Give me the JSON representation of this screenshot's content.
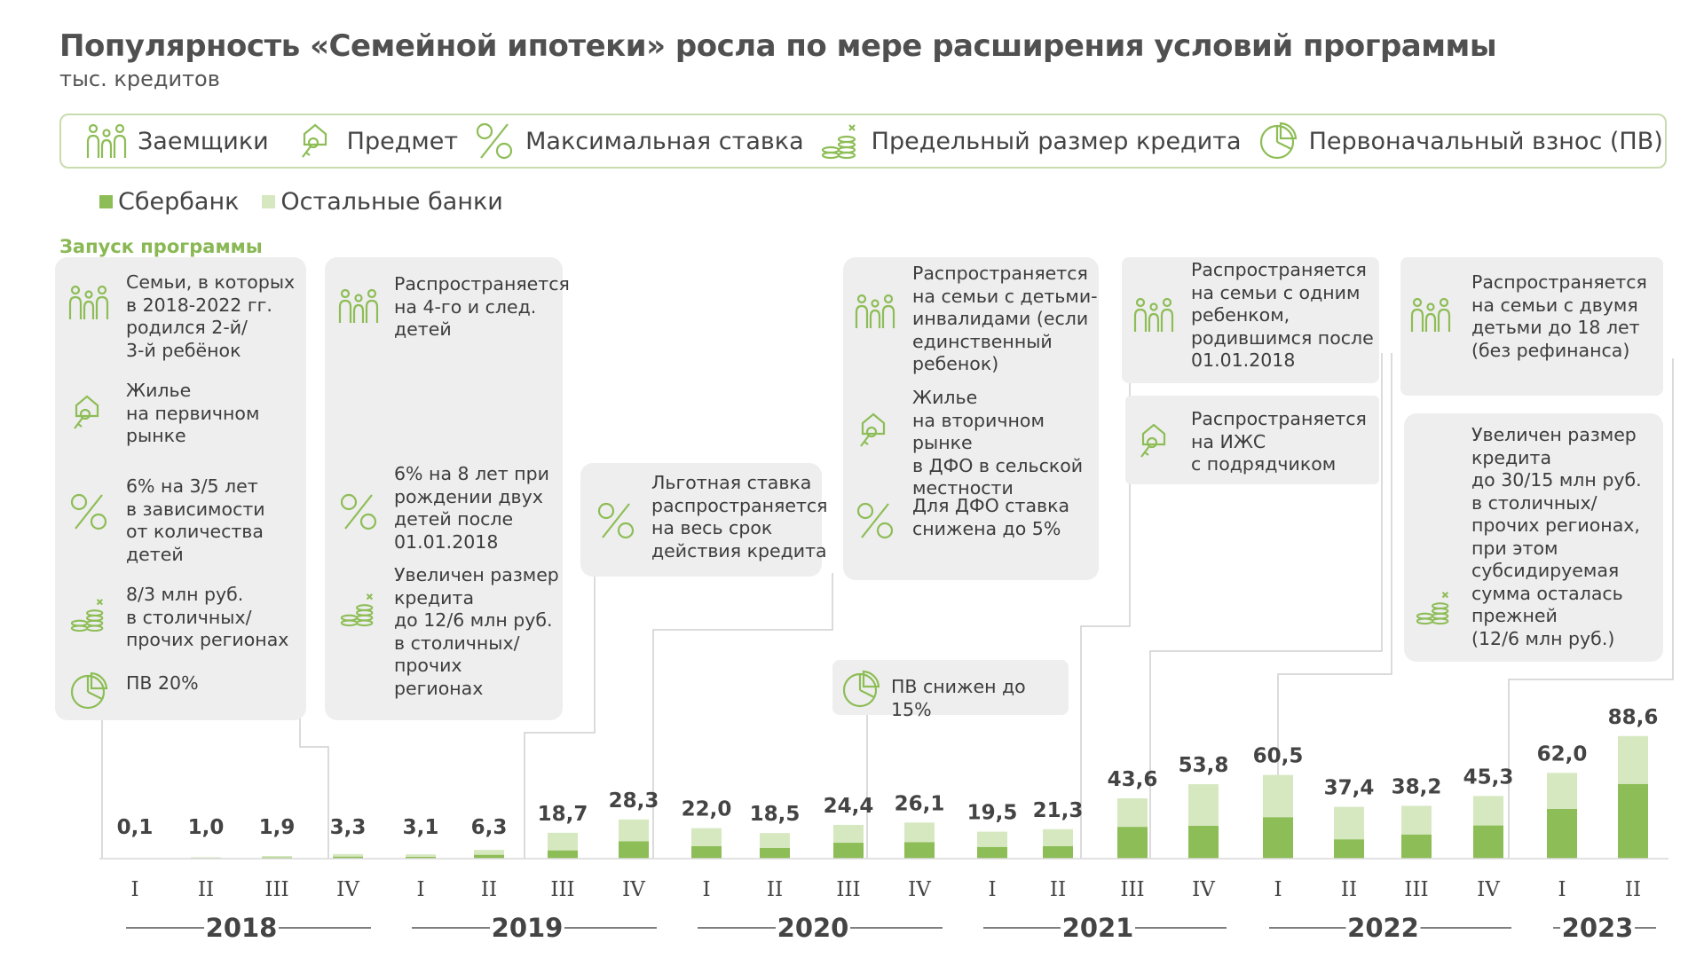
{
  "title": "Популярность «Семейной ипотеки» росла по мере расширения условий программы",
  "subtitle": "тыс. кредитов",
  "legend_icons": [
    {
      "icon": "family-icon",
      "label": "Заемщики"
    },
    {
      "icon": "house-key-icon",
      "label": "Предмет"
    },
    {
      "icon": "percent-icon",
      "label": "Максимальная ставка"
    },
    {
      "icon": "coins-icon",
      "label": "Предельный размер кредита"
    },
    {
      "icon": "pie-chart-icon",
      "label": "Первоначальный взнос (ПВ)"
    }
  ],
  "series_legend": [
    {
      "name": "Сбербанк",
      "color": "#8dbd56"
    },
    {
      "name": "Остальные банки",
      "color": "#d6e8c0"
    }
  ],
  "launch_label": "Запуск программы",
  "boxes": {
    "launch": {
      "borrowers": "Семьи, в которых\nв 2018-2022 гг.\nродился 2-й/\n3-й ребёнок",
      "subject": "Жилье\nна первичном\nрынке",
      "rate": "6% на 3/5 лет\nв зависимости\nот количества\nдетей",
      "limit": "8/3 млн руб.\nв столичных/\nпрочих регионах",
      "down": "ПВ 20%"
    },
    "y2019": {
      "borrowers": "Распространяется\nна 4-го и след.\nдетей",
      "rate": "6% на 8 лет при\nрождении двух\nдетей после\n01.01.2018",
      "limit": "Увеличен размер\nкредита\nдо 12/6 млн руб.\nв столичных/\nпрочих\nрегионах"
    },
    "y2019q4": {
      "rate": "Льготная ставка\nраспространяется\nна весь срок\nдействия кредита"
    },
    "y2020_down": {
      "down": "ПВ снижен до 15%"
    },
    "y2021q1": {
      "borrowers": "Распространяется\nна семьи с детьми-\nинвалидами (если\nединственный\nребенок)",
      "subject": "Жилье\nна вторичном рынке\nв ДФО в сельской\nместности",
      "rate": "Для ДФО ставка\nснижена до 5%"
    },
    "y2022_a": {
      "borrowers": "Распространяется\nна семьи с одним\nребенком,\nродившимся после\n01.01.2018"
    },
    "y2022_b": {
      "subject": "Распространяется\nна ИЖС\nс подрядчиком"
    },
    "y2023_a": {
      "borrowers": "Распространяется\nна семьи с двумя\nдетьми до 18 лет\n(без рефинанса)"
    },
    "y2023_b": {
      "limit": "Увеличен размер\nкредита\nдо 30/15 млн руб.\nв столичных/\nпрочих регионах,\nпри этом\nсубсидируемая\nсумма осталась\nпрежней\n(12/6 млн руб.)"
    }
  },
  "chart_data": {
    "type": "bar",
    "stacked": true,
    "title": "Популярность «Семейной ипотеки» росла по мере расширения условий программы",
    "ylabel": "тыс. кредитов",
    "categories": [
      "I",
      "II",
      "III",
      "IV",
      "I",
      "II",
      "III",
      "IV",
      "I",
      "II",
      "III",
      "IV",
      "I",
      "II",
      "III",
      "IV",
      "I",
      "II",
      "III",
      "IV",
      "I",
      "II"
    ],
    "years": [
      {
        "label": "2018",
        "quarters": 4
      },
      {
        "label": "2019",
        "quarters": 4
      },
      {
        "label": "2020",
        "quarters": 4
      },
      {
        "label": "2021",
        "quarters": 4
      },
      {
        "label": "2022",
        "quarters": 4
      },
      {
        "label": "2023",
        "quarters": 2
      }
    ],
    "totals": [
      0.1,
      1.0,
      1.9,
      3.3,
      3.1,
      6.3,
      18.7,
      28.3,
      22.0,
      18.5,
      24.4,
      26.1,
      19.5,
      21.3,
      43.6,
      53.8,
      60.5,
      37.4,
      38.2,
      45.3,
      62.0,
      88.6
    ],
    "total_labels": [
      "0,1",
      "1,0",
      "1,9",
      "3,3",
      "3,1",
      "6,3",
      "18,7",
      "28,3",
      "22,0",
      "18,5",
      "24,4",
      "26,1",
      "19,5",
      "21,3",
      "43,6",
      "53,8",
      "60,5",
      "37,4",
      "38,2",
      "45,3",
      "62,0",
      "88,6"
    ],
    "series": [
      {
        "name": "Сбербанк",
        "values": [
          0.05,
          0.5,
          0.9,
          1.5,
          1.4,
          2.8,
          6.0,
          12.5,
          9.0,
          7.8,
          11.5,
          12.0,
          8.5,
          9.0,
          23.0,
          23.8,
          30.0,
          14.0,
          17.5,
          24.0,
          36.0,
          54.0
        ]
      },
      {
        "name": "Остальные банки",
        "values": [
          0.05,
          0.5,
          1.0,
          1.8,
          1.7,
          3.5,
          12.7,
          15.8,
          13.0,
          10.7,
          12.9,
          14.1,
          11.0,
          12.3,
          20.6,
          30.0,
          30.5,
          23.4,
          20.7,
          21.3,
          26.0,
          34.6
        ]
      }
    ],
    "ylim": [
      0,
      90
    ]
  }
}
